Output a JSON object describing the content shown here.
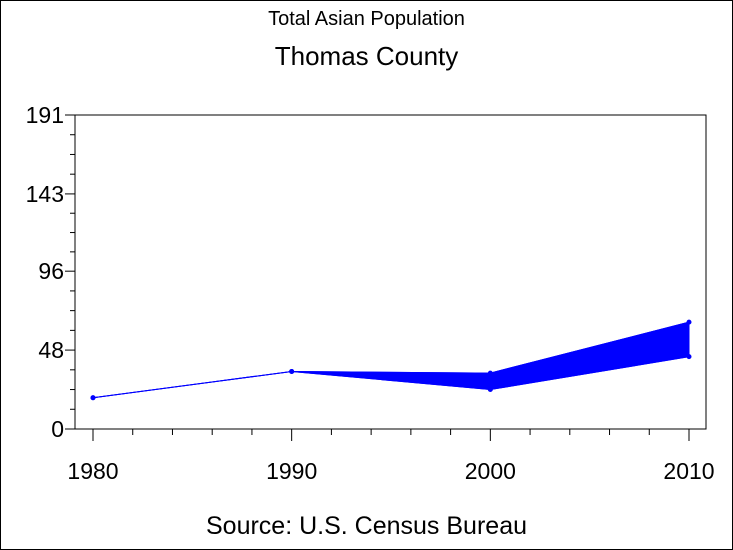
{
  "chart_data": {
    "type": "area",
    "title": "Total Asian Population",
    "subtitle": "Thomas County",
    "source": "Source: U.S. Census Bureau",
    "xlabel": "",
    "ylabel": "",
    "x": [
      1980,
      1990,
      2000,
      2010
    ],
    "xlim": [
      1980,
      2010
    ],
    "ylim": [
      0,
      191
    ],
    "y_ticks": [
      "0",
      "48",
      "96",
      "143",
      "191"
    ],
    "x_ticks": [
      "1980",
      "1990",
      "2000",
      "2010"
    ],
    "grid": false,
    "series": [
      {
        "values": [
          19,
          35,
          24,
          44
        ],
        "color": "#0000ff"
      },
      {
        "values": [
          19,
          35,
          34,
          65
        ],
        "color": "#0000ff"
      }
    ]
  }
}
